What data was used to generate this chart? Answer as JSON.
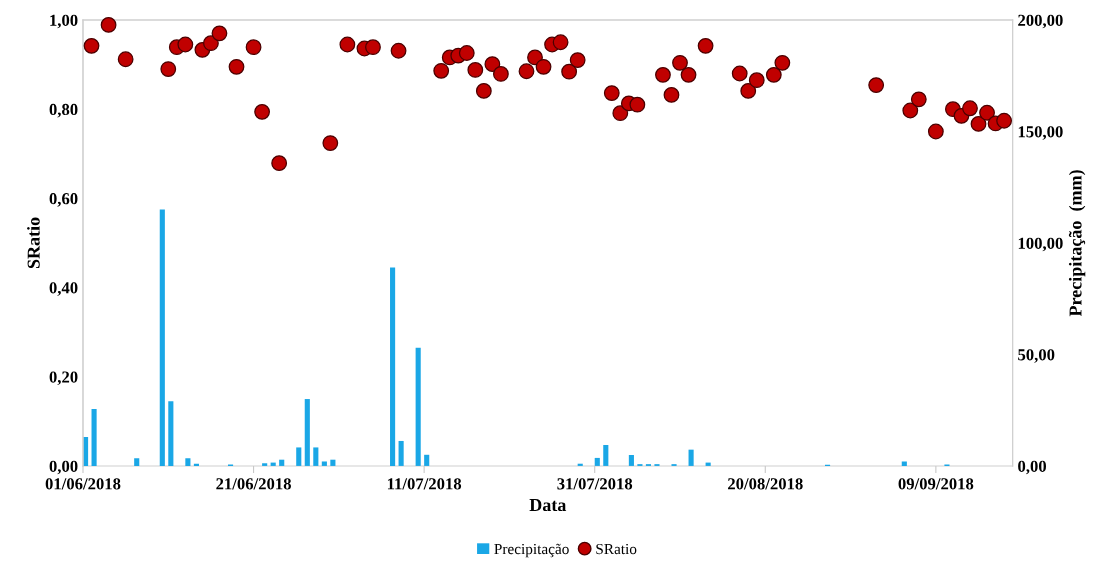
{
  "chart_data": {
    "type": "bar",
    "xlabel": "Data",
    "ylabel": "SRatio",
    "y2label": "Precipitação  (mm)",
    "legend": "bottom",
    "grid": false,
    "xlim": [
      "2018-06-01",
      "2018-09-18"
    ],
    "xticks": [
      {
        "value": "2018-06-01",
        "label": "01/06/2018"
      },
      {
        "value": "2018-06-21",
        "label": "21/06/2018"
      },
      {
        "value": "2018-07-11",
        "label": "11/07/2018"
      },
      {
        "value": "2018-07-31",
        "label": "31/07/2018"
      },
      {
        "value": "2018-08-20",
        "label": "20/08/2018"
      },
      {
        "value": "2018-09-09",
        "label": "09/09/2018"
      }
    ],
    "ylim": [
      0,
      1
    ],
    "yticks": [
      {
        "value": 0,
        "label": "0,00"
      },
      {
        "value": 0.2,
        "label": "0,20"
      },
      {
        "value": 0.4,
        "label": "0,40"
      },
      {
        "value": 0.6,
        "label": "0,60"
      },
      {
        "value": 0.8,
        "label": "0,80"
      },
      {
        "value": 1,
        "label": "1,00"
      }
    ],
    "y2lim": [
      0,
      200
    ],
    "y2ticks": [
      {
        "value": 0,
        "label": "0,00"
      },
      {
        "value": 50,
        "label": "50,00"
      },
      {
        "value": 100,
        "label": "100,00"
      },
      {
        "value": 150,
        "label": "150,00"
      },
      {
        "value": 200,
        "label": "200,00"
      }
    ],
    "series": [
      {
        "name": "Precipitação",
        "axis": "y2",
        "color": "#1aa7e6",
        "x": [
          "2018-06-01",
          "2018-06-02",
          "2018-06-07",
          "2018-06-10",
          "2018-06-11",
          "2018-06-13",
          "2018-06-14",
          "2018-06-18",
          "2018-06-22",
          "2018-06-23",
          "2018-06-24",
          "2018-06-26",
          "2018-06-27",
          "2018-06-28",
          "2018-06-29",
          "2018-06-30",
          "2018-07-07",
          "2018-07-08",
          "2018-07-10",
          "2018-07-11",
          "2018-07-29",
          "2018-07-31",
          "2018-08-01",
          "2018-08-04",
          "2018-08-05",
          "2018-08-06",
          "2018-08-07",
          "2018-08-09",
          "2018-08-11",
          "2018-08-13",
          "2018-08-27",
          "2018-09-05",
          "2018-09-10"
        ],
        "values": [
          13,
          25.5,
          3.5,
          115,
          29,
          3.5,
          1,
          0.7,
          1.2,
          1.5,
          2.8,
          8.3,
          30,
          8.3,
          2,
          2.8,
          89,
          11.2,
          53,
          5,
          1,
          3.6,
          9.4,
          4.9,
          0.8,
          0.8,
          0.8,
          0.8,
          7.3,
          1.5,
          0.5,
          2,
          0.7
        ]
      },
      {
        "name": "SRatio",
        "type": "scatter",
        "marker": "circle",
        "color": "#c00000",
        "x": [
          "2018-06-02",
          "2018-06-04",
          "2018-06-06",
          "2018-06-11",
          "2018-06-12",
          "2018-06-13",
          "2018-06-15",
          "2018-06-16",
          "2018-06-17",
          "2018-06-19",
          "2018-06-21",
          "2018-06-22",
          "2018-06-24",
          "2018-06-30",
          "2018-07-02",
          "2018-07-04",
          "2018-07-05",
          "2018-07-08",
          "2018-07-13",
          "2018-07-14",
          "2018-07-15",
          "2018-07-16",
          "2018-07-17",
          "2018-07-18",
          "2018-07-19",
          "2018-07-20",
          "2018-07-23",
          "2018-07-24",
          "2018-07-25",
          "2018-07-26",
          "2018-07-27",
          "2018-07-28",
          "2018-07-29",
          "2018-08-02",
          "2018-08-03",
          "2018-08-04",
          "2018-08-05",
          "2018-08-08",
          "2018-08-09",
          "2018-08-10",
          "2018-08-11",
          "2018-08-13",
          "2018-08-17",
          "2018-08-18",
          "2018-08-19",
          "2018-08-21",
          "2018-08-22",
          "2018-09-02",
          "2018-09-06",
          "2018-09-07",
          "2018-09-09",
          "2018-09-11",
          "2018-09-12",
          "2018-09-13",
          "2018-09-14",
          "2018-09-15",
          "2018-09-16",
          "2018-09-17"
        ],
        "values": [
          0.942,
          0.989,
          0.912,
          0.89,
          0.939,
          0.945,
          0.933,
          0.948,
          0.97,
          0.895,
          0.939,
          0.794,
          0.679,
          0.724,
          0.945,
          0.936,
          0.939,
          0.931,
          0.886,
          0.916,
          0.92,
          0.926,
          0.888,
          0.841,
          0.901,
          0.879,
          0.885,
          0.916,
          0.895,
          0.945,
          0.95,
          0.884,
          0.91,
          0.836,
          0.791,
          0.813,
          0.81,
          0.877,
          0.832,
          0.904,
          0.877,
          0.942,
          0.88,
          0.841,
          0.865,
          0.877,
          0.904,
          0.854,
          0.797,
          0.822,
          0.75,
          0.8,
          0.785,
          0.802,
          0.767,
          0.792,
          0.768,
          0.774
        ]
      }
    ]
  }
}
